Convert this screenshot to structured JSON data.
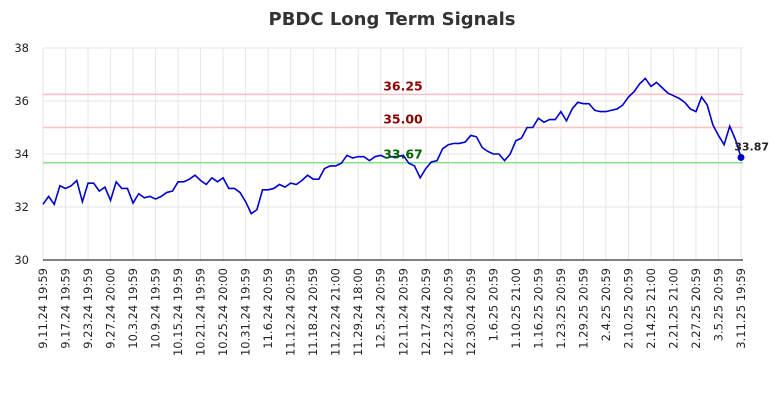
{
  "chart_data": {
    "type": "line",
    "title": "PBDC Long Term Signals",
    "categories": [
      "9.11.24 19:59",
      null,
      null,
      null,
      "9.17.24 19:59",
      null,
      null,
      null,
      "9.23.24 19:59",
      null,
      null,
      null,
      "9.27.24 20:00",
      null,
      null,
      null,
      "10.3.24 19:59",
      null,
      null,
      null,
      "10.9.24 19:59",
      null,
      null,
      null,
      "10.15.24 19:59",
      null,
      null,
      null,
      "10.21.24 19:59",
      null,
      null,
      null,
      "10.25.24 20:00",
      null,
      null,
      null,
      "10.31.24 19:59",
      null,
      null,
      null,
      "11.6.24 20:59",
      null,
      null,
      null,
      "11.12.24 20:59",
      null,
      null,
      null,
      "11.18.24 20:59",
      null,
      null,
      null,
      "11.22.24 21:00",
      null,
      null,
      null,
      "11.29.24 18:00",
      null,
      null,
      null,
      "12.5.24 20:59",
      null,
      null,
      null,
      "12.11.24 20:59",
      null,
      null,
      null,
      "12.17.24 20:59",
      null,
      null,
      null,
      "12.23.24 20:59",
      null,
      null,
      null,
      "12.30.24 20:59",
      null,
      null,
      null,
      "1.6.25 20:59",
      null,
      null,
      null,
      "1.10.25 21:00",
      null,
      null,
      null,
      "1.16.25 20:59",
      null,
      null,
      null,
      "1.23.25 20:59",
      null,
      null,
      null,
      "1.29.25 20:59",
      null,
      null,
      null,
      "2.4.25 20:59",
      null,
      null,
      null,
      "2.10.25 20:59",
      null,
      null,
      null,
      "2.14.25 21:00",
      null,
      null,
      null,
      "2.21.25 21:00",
      null,
      null,
      null,
      "2.27.25 20:59",
      null,
      null,
      null,
      "3.5.25 20:59",
      null,
      null,
      null,
      "3.11.25 19:59"
    ],
    "series": [
      {
        "name": "PBDC",
        "color": "#0000cc",
        "values": [
          32.1,
          32.4,
          32.1,
          32.8,
          32.7,
          32.8,
          33.0,
          32.2,
          32.9,
          32.9,
          32.6,
          32.75,
          32.25,
          32.95,
          32.7,
          32.7,
          32.15,
          32.5,
          32.35,
          32.4,
          32.3,
          32.4,
          32.55,
          32.6,
          32.95,
          32.95,
          33.05,
          33.2,
          33.0,
          32.85,
          33.1,
          32.95,
          33.1,
          32.7,
          32.7,
          32.55,
          32.2,
          31.75,
          31.9,
          32.65,
          32.65,
          32.7,
          32.85,
          32.75,
          32.9,
          32.85,
          33.0,
          33.2,
          33.05,
          33.05,
          33.45,
          33.55,
          33.55,
          33.65,
          33.95,
          33.85,
          33.9,
          33.9,
          33.75,
          33.9,
          33.95,
          33.85,
          33.9,
          33.9,
          33.95,
          33.65,
          33.55,
          33.1,
          33.45,
          33.7,
          33.75,
          34.2,
          34.35,
          34.4,
          34.4,
          34.45,
          34.7,
          34.65,
          34.25,
          34.1,
          34.0,
          34.0,
          33.75,
          34.0,
          34.5,
          34.6,
          35.0,
          35.0,
          35.35,
          35.2,
          35.3,
          35.3,
          35.6,
          35.25,
          35.7,
          35.95,
          35.9,
          35.9,
          35.65,
          35.6,
          35.6,
          35.65,
          35.7,
          35.85,
          36.15,
          36.35,
          36.65,
          36.85,
          36.55,
          36.7,
          36.5,
          36.3,
          36.2,
          36.1,
          35.95,
          35.7,
          35.6,
          36.15,
          35.85,
          35.1,
          34.7,
          34.35,
          35.05,
          34.55,
          33.87
        ]
      }
    ],
    "ylim": [
      30,
      38
    ],
    "yticks": [
      30,
      32,
      34,
      36,
      38
    ],
    "grid": true,
    "reference_lines": [
      {
        "value": 36.25,
        "label": "36.25",
        "color": "#ffc0c0",
        "label_color": "#8b0000"
      },
      {
        "value": 35,
        "label": "35.00",
        "color": "#ffc0c0",
        "label_color": "#8b0000"
      },
      {
        "value": 33.67,
        "label": "33.67",
        "color": "#88e088",
        "label_color": "#006400"
      }
    ]
  }
}
